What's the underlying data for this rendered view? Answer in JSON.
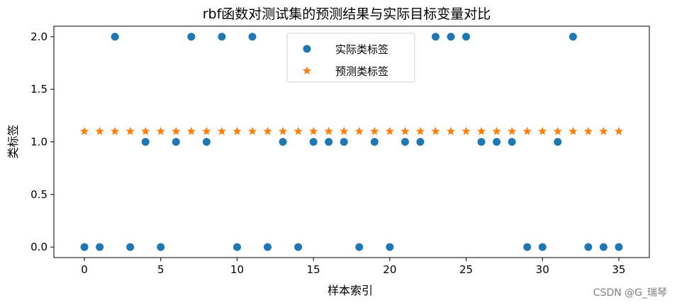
{
  "chart_data": {
    "type": "scatter",
    "title": "rbf函数对测试集的预测结果与实际目标变量对比",
    "xlabel": "样本索引",
    "ylabel": "类标签",
    "xlim": [
      -2,
      37
    ],
    "ylim": [
      -0.1,
      2.1
    ],
    "xticks": [
      0,
      5,
      10,
      15,
      20,
      25,
      30,
      35
    ],
    "xtick_labels": [
      "0",
      "5",
      "10",
      "15",
      "20",
      "25",
      "30",
      "35"
    ],
    "yticks": [
      0,
      0.5,
      1,
      1.5,
      2
    ],
    "ytick_labels": [
      "0.0",
      "0.5",
      "1.0",
      "1.5",
      "2.0"
    ],
    "grid": false,
    "legend_position": "top-center",
    "series": [
      {
        "name": "实际类标签",
        "marker": "circle",
        "color": "#1f77b4",
        "x": [
          0,
          1,
          2,
          3,
          4,
          5,
          6,
          7,
          8,
          9,
          10,
          11,
          12,
          13,
          14,
          15,
          16,
          17,
          18,
          19,
          20,
          21,
          22,
          23,
          24,
          25,
          26,
          27,
          28,
          29,
          30,
          31,
          32,
          33,
          34,
          35
        ],
        "y": [
          0,
          0,
          2,
          0,
          1,
          0,
          1,
          2,
          1,
          2,
          0,
          2,
          0,
          1,
          0,
          1,
          1,
          1,
          0,
          1,
          0,
          1,
          1,
          2,
          2,
          2,
          1,
          1,
          1,
          0,
          0,
          1,
          2,
          0,
          0,
          0
        ]
      },
      {
        "name": "预测类标签",
        "marker": "star",
        "color": "#ff7f0e",
        "x": [
          0,
          1,
          2,
          3,
          4,
          5,
          6,
          7,
          8,
          9,
          10,
          11,
          12,
          13,
          14,
          15,
          16,
          17,
          18,
          19,
          20,
          21,
          22,
          23,
          24,
          25,
          26,
          27,
          28,
          29,
          30,
          31,
          32,
          33,
          34,
          35
        ],
        "y": [
          1.1,
          1.1,
          1.1,
          1.1,
          1.1,
          1.1,
          1.1,
          1.1,
          1.1,
          1.1,
          1.1,
          1.1,
          1.1,
          1.1,
          1.1,
          1.1,
          1.1,
          1.1,
          1.1,
          1.1,
          1.1,
          1.1,
          1.1,
          1.1,
          1.1,
          1.1,
          1.1,
          1.1,
          1.1,
          1.1,
          1.1,
          1.1,
          1.1,
          1.1,
          1.1,
          1.1
        ]
      }
    ]
  },
  "watermark": "CSDN @G_瑞琴"
}
